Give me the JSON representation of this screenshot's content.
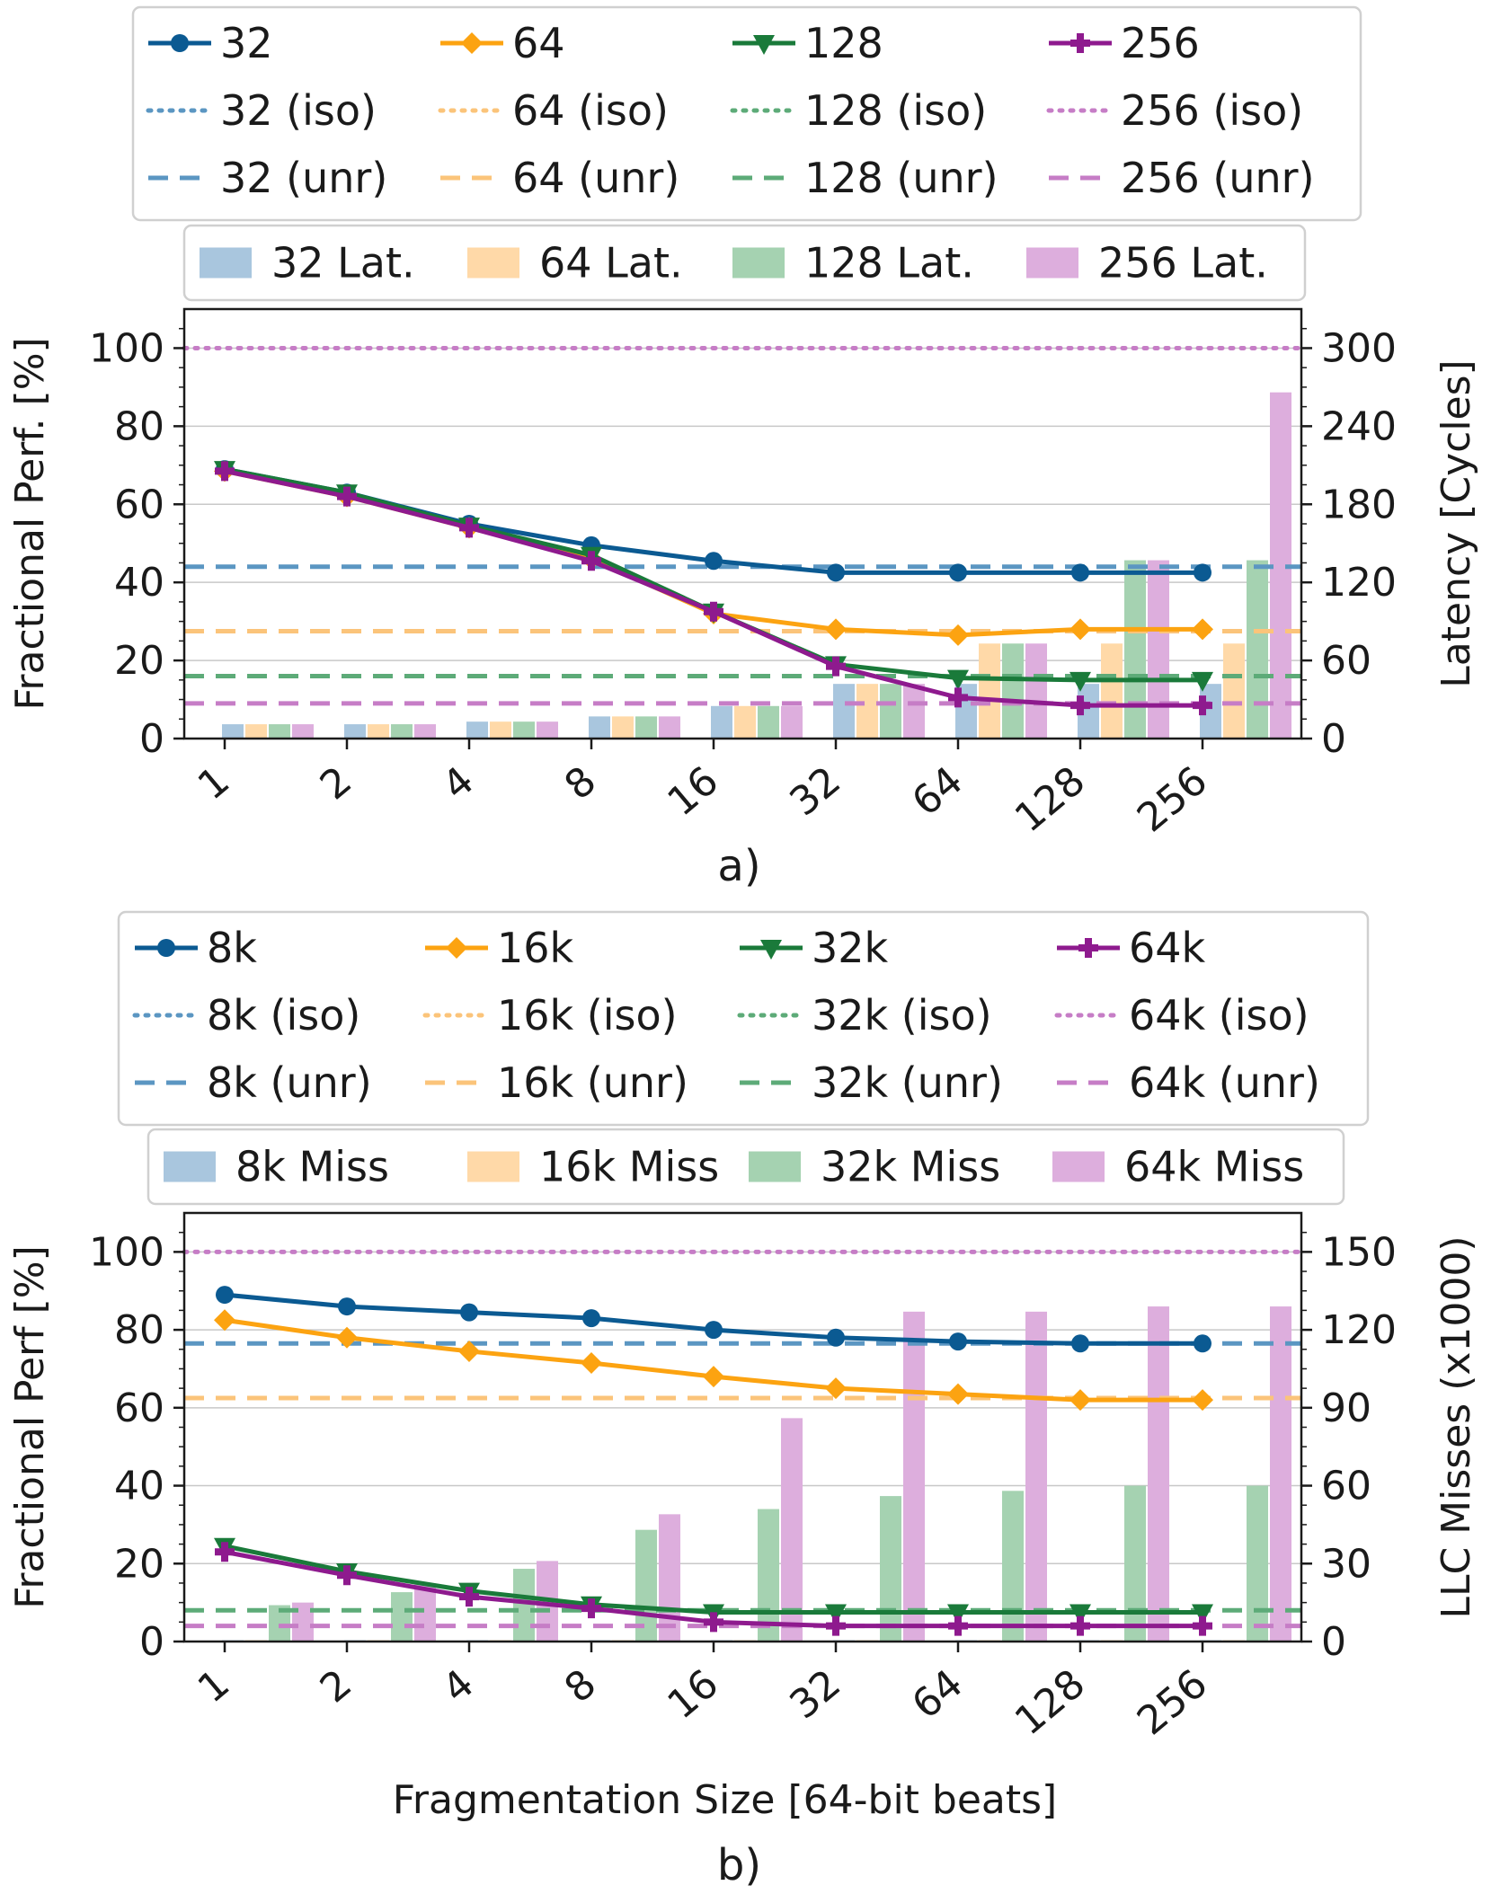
{
  "colors": {
    "c1": "#0b5a92",
    "c2": "#fca311",
    "c3": "#1a7a3a",
    "c4": "#8e1a8e",
    "c1_light": "#5b96c2",
    "c2_light": "#fbc47a",
    "c3_light": "#5dab78",
    "c4_light": "#c67dc6",
    "b1": "#a9c6de",
    "b2": "#ffd9a8",
    "b3": "#a5d2b1",
    "b4": "#ddaedd"
  },
  "chart_data": [
    {
      "type": "bar+line",
      "panel_label": "a)",
      "xlabel": "",
      "ylabel": "Fractional Perf. [%]",
      "ylabel_right": "Latency [Cycles]",
      "categories": [
        "1",
        "2",
        "4",
        "8",
        "16",
        "32",
        "64",
        "128",
        "256"
      ],
      "ylim": [
        0,
        110
      ],
      "yticks": [
        "0",
        "20",
        "40",
        "60",
        "80",
        "100"
      ],
      "ylim_right": [
        0,
        330
      ],
      "yticks_right": [
        "0",
        "60",
        "120",
        "180",
        "240",
        "300"
      ],
      "legend_lines": [
        {
          "label": "32",
          "color": "#0b5a92",
          "marker": "circle"
        },
        {
          "label": "64",
          "color": "#fca311",
          "marker": "diamond"
        },
        {
          "label": "128",
          "color": "#1a7a3a",
          "marker": "triangle"
        },
        {
          "label": "256",
          "color": "#8e1a8e",
          "marker": "plus"
        },
        {
          "label": "32 (iso)",
          "color": "#5b96c2",
          "style": "dotted"
        },
        {
          "label": "64 (iso)",
          "color": "#fbc47a",
          "style": "dotted"
        },
        {
          "label": "128 (iso)",
          "color": "#5dab78",
          "style": "dotted"
        },
        {
          "label": "256 (iso)",
          "color": "#c67dc6",
          "style": "dotted"
        },
        {
          "label": "32 (unr)",
          "color": "#5b96c2",
          "style": "dashed"
        },
        {
          "label": "64 (unr)",
          "color": "#fbc47a",
          "style": "dashed"
        },
        {
          "label": "128 (unr)",
          "color": "#5dab78",
          "style": "dashed"
        },
        {
          "label": "256 (unr)",
          "color": "#c67dc6",
          "style": "dashed"
        }
      ],
      "legend_bars": [
        {
          "label": "32 Lat.",
          "color": "#a9c6de"
        },
        {
          "label": "64 Lat.",
          "color": "#ffd9a8"
        },
        {
          "label": "128 Lat.",
          "color": "#a5d2b1"
        },
        {
          "label": "256 Lat.",
          "color": "#ddaedd"
        }
      ],
      "series": [
        {
          "name": "32",
          "color": "#0b5a92",
          "marker": "circle",
          "values": [
            69,
            63,
            55,
            49.5,
            45.5,
            42.5,
            42.5,
            42.5,
            42.5
          ]
        },
        {
          "name": "64",
          "color": "#fca311",
          "marker": "diamond",
          "values": [
            68.5,
            62,
            54,
            46,
            32,
            28,
            26.5,
            28,
            28
          ]
        },
        {
          "name": "128",
          "color": "#1a7a3a",
          "marker": "triangle",
          "values": [
            69,
            63,
            54.5,
            47,
            32.5,
            19,
            15.5,
            15,
            15
          ]
        },
        {
          "name": "256",
          "color": "#8e1a8e",
          "marker": "plus",
          "values": [
            68.5,
            62,
            54,
            45.5,
            32.5,
            18.5,
            10.5,
            8.5,
            8.5
          ]
        }
      ],
      "hlines": [
        {
          "name": "256 (iso)",
          "value": 100,
          "color": "#c67dc6",
          "style": "dotted"
        },
        {
          "name": "32 (unr)",
          "value": 44,
          "color": "#5b96c2",
          "style": "dashed"
        },
        {
          "name": "64 (unr)",
          "value": 27.5,
          "color": "#fbc47a",
          "style": "dashed"
        },
        {
          "name": "128 (unr)",
          "value": 16,
          "color": "#5dab78",
          "style": "dashed"
        },
        {
          "name": "256 (unr)",
          "value": 9,
          "color": "#c67dc6",
          "style": "dashed"
        }
      ],
      "bars": [
        {
          "name": "32 Lat.",
          "color": "#a9c6de",
          "values": [
            11,
            11,
            13,
            17,
            25,
            42,
            42,
            42,
            42
          ]
        },
        {
          "name": "64 Lat.",
          "color": "#ffd9a8",
          "values": [
            11,
            11,
            13,
            17,
            25,
            42,
            73,
            73,
            73
          ]
        },
        {
          "name": "128 Lat.",
          "color": "#a5d2b1",
          "values": [
            11,
            11,
            13,
            17,
            25,
            42,
            73,
            137,
            137
          ]
        },
        {
          "name": "256 Lat.",
          "color": "#ddaedd",
          "values": [
            11,
            11,
            13,
            17,
            25,
            42,
            73,
            137,
            266
          ]
        }
      ]
    },
    {
      "type": "bar+line",
      "panel_label": "b)",
      "xlabel": "Fragmentation Size [64-bit beats]",
      "ylabel": "Fractional Perf [%]",
      "ylabel_right": "LLC Misses (x1000)",
      "categories": [
        "1",
        "2",
        "4",
        "8",
        "16",
        "32",
        "64",
        "128",
        "256"
      ],
      "ylim": [
        0,
        110
      ],
      "yticks": [
        "0",
        "20",
        "40",
        "60",
        "80",
        "100"
      ],
      "ylim_right": [
        0,
        165
      ],
      "yticks_right": [
        "0",
        "30",
        "60",
        "90",
        "120",
        "150"
      ],
      "legend_lines": [
        {
          "label": "8k",
          "color": "#0b5a92",
          "marker": "circle"
        },
        {
          "label": "16k",
          "color": "#fca311",
          "marker": "diamond"
        },
        {
          "label": "32k",
          "color": "#1a7a3a",
          "marker": "triangle"
        },
        {
          "label": "64k",
          "color": "#8e1a8e",
          "marker": "plus"
        },
        {
          "label": "8k (iso)",
          "color": "#5b96c2",
          "style": "dotted"
        },
        {
          "label": "16k (iso)",
          "color": "#fbc47a",
          "style": "dotted"
        },
        {
          "label": "32k (iso)",
          "color": "#5dab78",
          "style": "dotted"
        },
        {
          "label": "64k (iso)",
          "color": "#c67dc6",
          "style": "dotted"
        },
        {
          "label": "8k (unr)",
          "color": "#5b96c2",
          "style": "dashed"
        },
        {
          "label": "16k (unr)",
          "color": "#fbc47a",
          "style": "dashed"
        },
        {
          "label": "32k (unr)",
          "color": "#5dab78",
          "style": "dashed"
        },
        {
          "label": "64k (unr)",
          "color": "#c67dc6",
          "style": "dashed"
        }
      ],
      "legend_bars": [
        {
          "label": "8k Miss",
          "color": "#a9c6de"
        },
        {
          "label": "16k Miss",
          "color": "#ffd9a8"
        },
        {
          "label": "32k Miss",
          "color": "#a5d2b1"
        },
        {
          "label": "64k Miss",
          "color": "#ddaedd"
        }
      ],
      "series": [
        {
          "name": "8k",
          "color": "#0b5a92",
          "marker": "circle",
          "values": [
            89,
            86,
            84.5,
            83,
            80,
            78,
            77,
            76.5,
            76.5
          ]
        },
        {
          "name": "16k",
          "color": "#fca311",
          "marker": "diamond",
          "values": [
            82.5,
            78,
            74.5,
            71.5,
            68,
            65,
            63.5,
            62,
            62
          ]
        },
        {
          "name": "32k",
          "color": "#1a7a3a",
          "marker": "triangle",
          "values": [
            24.5,
            18,
            13,
            9.5,
            7.5,
            7.5,
            7.5,
            7.5,
            7.5
          ]
        },
        {
          "name": "64k",
          "color": "#8e1a8e",
          "marker": "plus",
          "values": [
            23,
            17,
            11.5,
            8.5,
            5,
            4,
            4,
            4,
            4
          ]
        }
      ],
      "hlines": [
        {
          "name": "64k (iso)",
          "value": 100,
          "color": "#c67dc6",
          "style": "dotted"
        },
        {
          "name": "8k (unr)",
          "value": 76.5,
          "color": "#5b96c2",
          "style": "dashed"
        },
        {
          "name": "16k (unr)",
          "value": 62.5,
          "color": "#fbc47a",
          "style": "dashed"
        },
        {
          "name": "32k (unr)",
          "value": 8,
          "color": "#5dab78",
          "style": "dashed"
        },
        {
          "name": "64k (unr)",
          "value": 4,
          "color": "#c67dc6",
          "style": "dashed"
        }
      ],
      "bars": [
        {
          "name": "8k Miss",
          "color": "#a9c6de",
          "values": [
            0.5,
            0.5,
            0.5,
            0.5,
            0.5,
            0.5,
            0.5,
            0.5,
            0.5
          ]
        },
        {
          "name": "16k Miss",
          "color": "#ffd9a8",
          "values": [
            0.5,
            0.5,
            0.5,
            0.5,
            0.5,
            0.5,
            0.5,
            0.5,
            0.5
          ]
        },
        {
          "name": "32k Miss",
          "color": "#a5d2b1",
          "values": [
            14,
            19,
            28,
            43,
            51,
            56,
            58,
            60,
            60
          ]
        },
        {
          "name": "64k Miss",
          "color": "#ddaedd",
          "values": [
            15,
            22,
            31,
            49,
            86,
            127,
            127,
            129,
            129
          ]
        }
      ]
    }
  ]
}
